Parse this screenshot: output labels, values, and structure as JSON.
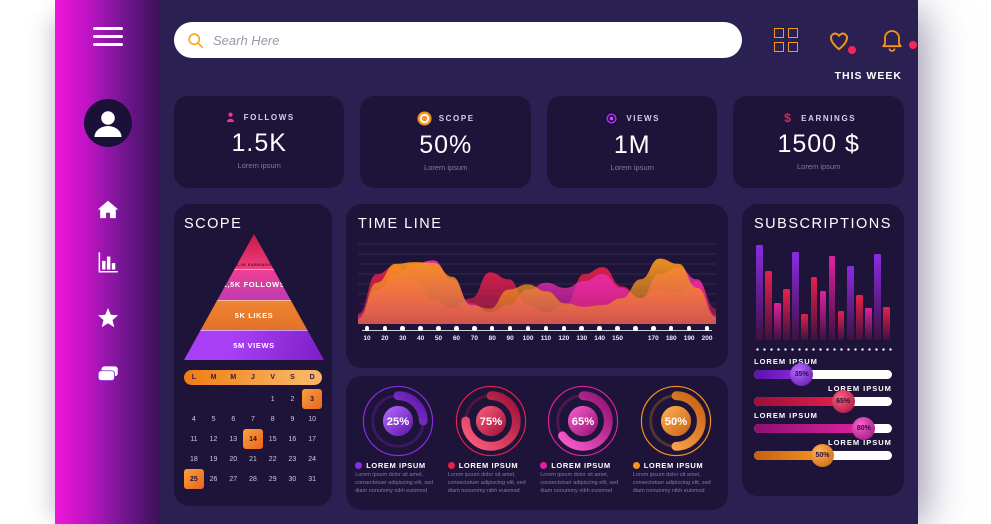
{
  "colors": {
    "page_bg": "#ffffff",
    "main_bg": "#2a2051",
    "panel_bg": "#1e1339",
    "accent_orange": "#f7941e",
    "accent_pink": "#ff2d92",
    "accent_purple": "#8a2ce2",
    "accent_red": "#e8204c",
    "accent_magenta": "#e021a0",
    "notification_dot": "#fa2458",
    "sidebar_gradient": [
      "#f215d8",
      "#3a1158"
    ]
  },
  "sidebar": {
    "icons": [
      {
        "name": "menu"
      },
      {
        "name": "user-avatar"
      },
      {
        "name": "home"
      },
      {
        "name": "stats"
      },
      {
        "name": "star"
      },
      {
        "name": "files"
      }
    ]
  },
  "topbar": {
    "search_placeholder": "Searh Here",
    "period_label": "THIS WEEK"
  },
  "stats": [
    {
      "label": "FOLLOWS",
      "value": "1.5K",
      "caption": "Lorem ipsum",
      "icon": "user",
      "icon_color": "#ff2d92"
    },
    {
      "label": "SCOPE",
      "value": "50%",
      "caption": "Lorem ipsum",
      "icon": "target",
      "icon_color": "#f7941e"
    },
    {
      "label": "VIEWS",
      "value": "1M",
      "caption": "Lorem ipsum",
      "icon": "eye",
      "icon_color": "#a32ded"
    },
    {
      "label": "EARNINGS",
      "value": "1500 $",
      "caption": "Lorem ipsum",
      "icon": "dollar",
      "icon_color": "#e8204c"
    }
  ],
  "scope_panel": {
    "title": "SCOPE",
    "pyramid": [
      {
        "label": "1,5K EARNINGS"
      },
      {
        "label": "1,5K FOLLOWS"
      },
      {
        "label": "5K LIKES"
      },
      {
        "label": "5M VIEWS"
      }
    ],
    "calendar": {
      "day_headers": [
        "L",
        "M",
        "M",
        "J",
        "V",
        "S",
        "D"
      ],
      "weeks": [
        [
          "",
          "",
          "",
          "",
          "1",
          "2",
          "3"
        ],
        [
          "4",
          "5",
          "6",
          "7",
          "8",
          "9",
          "10"
        ],
        [
          "11",
          "12",
          "13",
          "14",
          "15",
          "16",
          "17"
        ],
        [
          "18",
          "19",
          "20",
          "21",
          "22",
          "23",
          "24"
        ],
        [
          "25",
          "26",
          "27",
          "28",
          "29",
          "30",
          "31"
        ]
      ],
      "highlighted_days": [
        "3",
        "14",
        "25"
      ]
    }
  },
  "timeline_panel": {
    "title": "TIME LINE",
    "chart_data": {
      "type": "area",
      "x": [
        10,
        20,
        30,
        40,
        50,
        60,
        70,
        80,
        90,
        100,
        110,
        120,
        130,
        140,
        150,
        160,
        170,
        180,
        190,
        200
      ],
      "x_tick_labels": [
        "10",
        "20",
        "30",
        "40",
        "50",
        "60",
        "70",
        "80",
        "90",
        "100",
        "110",
        "120",
        "130",
        "140",
        "150",
        "",
        "170",
        "180",
        "190",
        "200"
      ],
      "ylim": [
        0,
        100
      ],
      "grid": true,
      "series": [
        {
          "name": "red",
          "color": "#e4204c",
          "values": [
            12,
            58,
            68,
            50,
            28,
            18,
            30,
            60,
            52,
            22,
            14,
            22,
            58,
            66,
            44,
            30,
            40,
            36,
            50,
            18
          ]
        },
        {
          "name": "magenta",
          "color": "#ee2bb0",
          "values": [
            10,
            40,
            58,
            70,
            74,
            52,
            24,
            14,
            22,
            40,
            48,
            42,
            50,
            58,
            42,
            30,
            58,
            66,
            52,
            10
          ]
        },
        {
          "name": "orange",
          "color": "#f7941e",
          "values": [
            6,
            48,
            70,
            72,
            71,
            55,
            22,
            18,
            40,
            46,
            38,
            24,
            20,
            22,
            30,
            52,
            76,
            70,
            42,
            8
          ]
        }
      ]
    }
  },
  "donut_panel": {
    "chart_data": {
      "type": "pie",
      "items": [
        {
          "percent": 25,
          "percent_label": "25%",
          "color": "purple",
          "title": "LOREM IPSUM",
          "desc": "Lorem ipsum dolor sit amet, consectetuer adipiscing elit, sed diam nonummy nibh euismod"
        },
        {
          "percent": 75,
          "percent_label": "75%",
          "color": "red",
          "title": "LOREM IPSUM",
          "desc": "Lorem ipsum dolor sit amet, consectetuer adipiscing elit, sed diam nonummy nibh euismod"
        },
        {
          "percent": 65,
          "percent_label": "65%",
          "color": "magenta",
          "title": "LOREM IPSUM",
          "desc": "Lorem ipsum dolor sit amet, consectetuer adipiscing elit, sed diam nonummy nibh euismod"
        },
        {
          "percent": 50,
          "percent_label": "50%",
          "color": "orange",
          "title": "LOREM IPSUM",
          "desc": "Lorem ipsum dolor sit amet, consectetuer adipiscing elit, sed diam nonummy nibh euismod"
        }
      ]
    }
  },
  "subscriptions_panel": {
    "title": "SUBSCRIPTIONS",
    "chart_data": {
      "type": "bar",
      "values": [
        97,
        70,
        38,
        52,
        90,
        27,
        64,
        50,
        86,
        30,
        76,
        46,
        33,
        88,
        34
      ],
      "colors": [
        "purple",
        "red",
        "magenta",
        "red",
        "purple",
        "red",
        "red",
        "magenta",
        "magenta",
        "red",
        "purple",
        "red",
        "magenta",
        "purple",
        "red"
      ],
      "ylim": [
        0,
        100
      ]
    },
    "sliders": [
      {
        "label": "LOREM IPSUM",
        "percent": 35,
        "value_label": "35%",
        "side": "left",
        "color": "purple"
      },
      {
        "label": "LOREM IPSUM",
        "percent": 65,
        "value_label": "65%",
        "side": "right",
        "color": "red"
      },
      {
        "label": "LOREM IPSUM",
        "percent": 80,
        "value_label": "80%",
        "side": "left",
        "color": "magenta"
      },
      {
        "label": "LOREM IPSUM",
        "percent": 50,
        "value_label": "50%",
        "side": "right",
        "color": "orange"
      }
    ]
  }
}
